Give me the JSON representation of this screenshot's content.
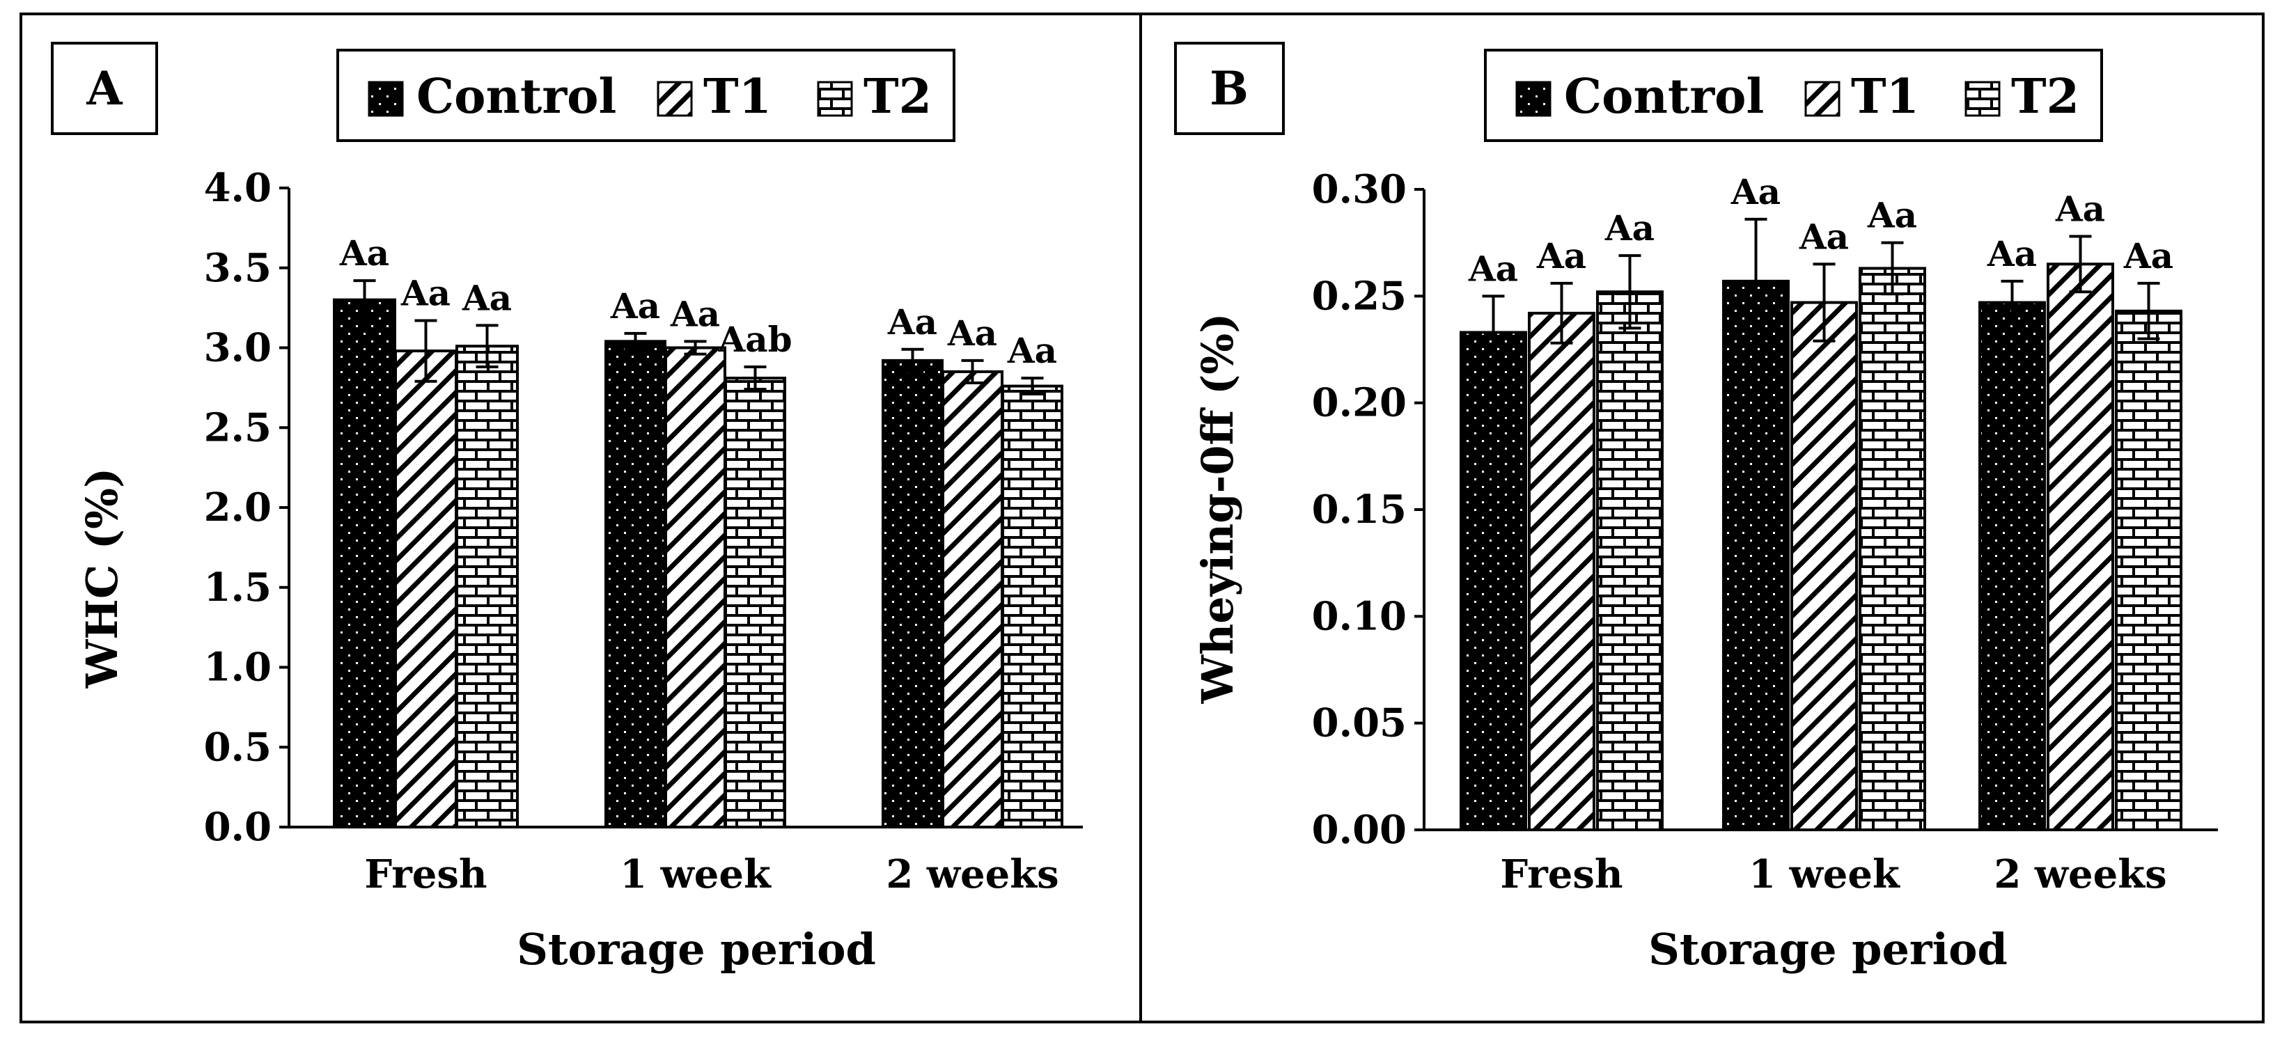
{
  "figure": {
    "panel_letters": [
      "A",
      "B"
    ]
  },
  "legend": {
    "entries": [
      "Control",
      "T1",
      "T2"
    ]
  },
  "chart_data": [
    {
      "type": "bar",
      "panel": "A",
      "title": "",
      "categories": [
        "Fresh",
        "1 week",
        "2 weeks"
      ],
      "series": [
        {
          "name": "Control",
          "values": [
            3.3,
            3.04,
            2.92
          ],
          "errors": [
            0.12,
            0.05,
            0.07
          ],
          "labels": [
            "Aa",
            "Aa",
            "Aa"
          ]
        },
        {
          "name": "T1",
          "values": [
            2.98,
            3.0,
            2.85
          ],
          "errors": [
            0.19,
            0.04,
            0.07
          ],
          "labels": [
            "Aa",
            "Aa",
            "Aa"
          ]
        },
        {
          "name": "T2",
          "values": [
            3.01,
            2.81,
            2.76
          ],
          "errors": [
            0.13,
            0.07,
            0.05
          ],
          "labels": [
            "Aa",
            "Aab",
            "Aa"
          ]
        }
      ],
      "xlabel": "Storage period",
      "ylabel": "WHC (%)",
      "ylim": [
        0,
        4
      ],
      "ytick_labels": [
        "0.0",
        "0.5",
        "1.0",
        "1.5",
        "2.0",
        "2.5",
        "3.0",
        "3.5",
        "4.0"
      ],
      "grid": false,
      "legend_position": "top"
    },
    {
      "type": "bar",
      "panel": "B",
      "title": "",
      "categories": [
        "Fresh",
        "1 week",
        "2 weeks"
      ],
      "series": [
        {
          "name": "Control",
          "values": [
            0.233,
            0.257,
            0.247
          ],
          "errors": [
            0.017,
            0.029,
            0.01
          ],
          "labels": [
            "Aa",
            "Aa",
            "Aa"
          ]
        },
        {
          "name": "T1",
          "values": [
            0.242,
            0.247,
            0.265
          ],
          "errors": [
            0.014,
            0.018,
            0.013
          ],
          "labels": [
            "Aa",
            "Aa",
            "Aa"
          ]
        },
        {
          "name": "T2",
          "values": [
            0.252,
            0.263,
            0.243
          ],
          "errors": [
            0.017,
            0.012,
            0.013
          ],
          "labels": [
            "Aa",
            "Aa",
            "Aa"
          ]
        }
      ],
      "xlabel": "Storage period",
      "ylabel": "Wheying-0ff   (%)",
      "ylim": [
        0,
        0.3
      ],
      "ytick_labels": [
        "0.00",
        "0.05",
        "0.10",
        "0.15",
        "0.20",
        "0.25",
        "0.30"
      ],
      "grid": false,
      "legend_position": "top"
    }
  ]
}
